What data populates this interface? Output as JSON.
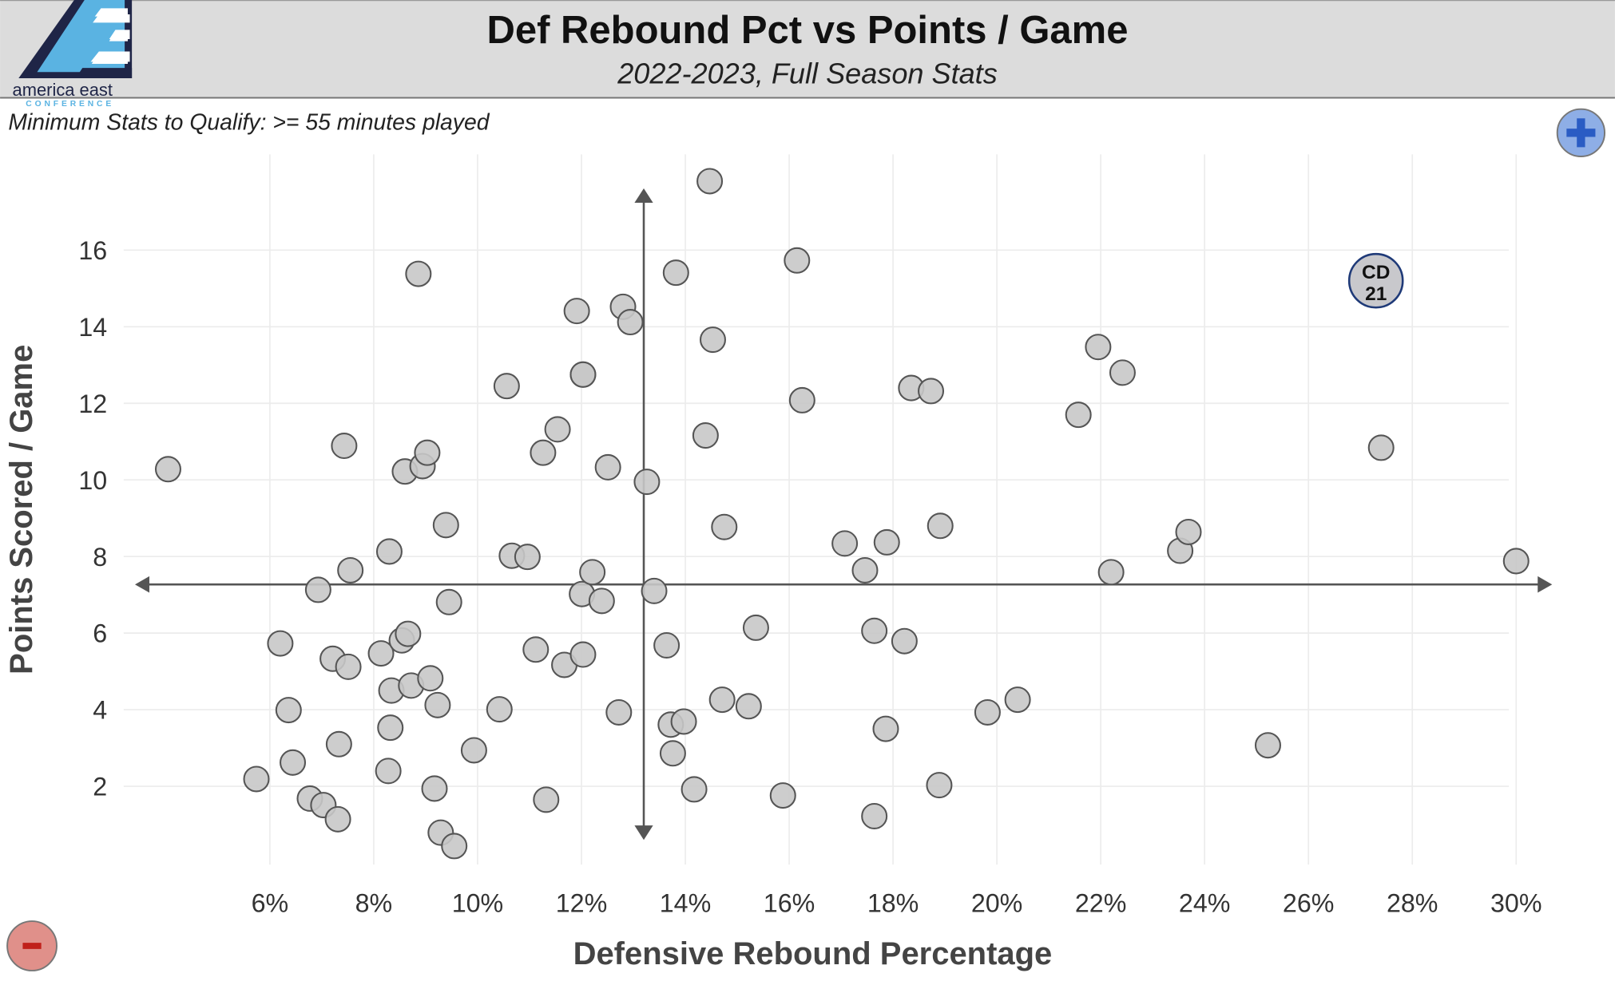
{
  "header": {
    "title": "Def Rebound Pct vs Points / Game",
    "subtitle": "2022-2023, Full Season Stats",
    "logo_text": "america east",
    "logo_subtext": "CONFERENCE"
  },
  "note": "Minimum Stats to Qualify: >= 55 minutes played",
  "controls": {
    "zoom_in_icon": "plus-icon",
    "zoom_out_icon": "minus-icon"
  },
  "colors": {
    "header_bg": "#dcdcdc",
    "point_fill": "#c8c8c8",
    "highlight_stroke": "#1f3a78",
    "plus_button": "#8eaee6",
    "minus_button": "#e0908a"
  },
  "chart_data": {
    "type": "scatter",
    "title": "Def Rebound Pct vs Points / Game",
    "xlabel": "Defensive Rebound Percentage",
    "ylabel": "Points Scored / Game",
    "xlim": [
      3.5,
      30.5
    ],
    "ylim": [
      0,
      18.5
    ],
    "x_ticks": [
      6,
      8,
      10,
      12,
      14,
      16,
      18,
      20,
      22,
      24,
      26,
      28,
      30
    ],
    "x_tick_labels": [
      "6%",
      "8%",
      "10%",
      "12%",
      "14%",
      "16%",
      "18%",
      "20%",
      "22%",
      "24%",
      "26%",
      "28%",
      "30%"
    ],
    "y_ticks": [
      2,
      4,
      6,
      8,
      10,
      12,
      14,
      16
    ],
    "y_tick_labels": [
      "2",
      "4",
      "6",
      "8",
      "10",
      "12",
      "14",
      "16"
    ],
    "grid": true,
    "average_lines": {
      "x": 13.2,
      "y": 7.27
    },
    "highlight": {
      "label_line1": "CD",
      "label_line2": "21",
      "x": 27.3,
      "y": 15.2
    },
    "points": [
      [
        4.04,
        10.28
      ],
      [
        5.74,
        2.19
      ],
      [
        6.2,
        5.73
      ],
      [
        6.36,
        3.99
      ],
      [
        6.44,
        2.62
      ],
      [
        6.77,
        1.68
      ],
      [
        7.03,
        1.51
      ],
      [
        7.31,
        1.14
      ],
      [
        6.93,
        7.13
      ],
      [
        7.21,
        5.33
      ],
      [
        7.51,
        5.12
      ],
      [
        7.33,
        3.1
      ],
      [
        7.43,
        10.89
      ],
      [
        7.55,
        7.64
      ],
      [
        8.14,
        5.47
      ],
      [
        8.3,
        8.13
      ],
      [
        8.34,
        4.5
      ],
      [
        8.32,
        3.53
      ],
      [
        8.28,
        2.4
      ],
      [
        8.54,
        5.81
      ],
      [
        8.66,
        5.98
      ],
      [
        8.72,
        4.63
      ],
      [
        8.6,
        10.22
      ],
      [
        8.86,
        15.38
      ],
      [
        8.94,
        10.36
      ],
      [
        9.03,
        10.71
      ],
      [
        9.09,
        4.82
      ],
      [
        9.23,
        4.12
      ],
      [
        9.17,
        1.94
      ],
      [
        9.29,
        0.79
      ],
      [
        9.55,
        0.44
      ],
      [
        9.39,
        8.82
      ],
      [
        9.45,
        6.81
      ],
      [
        9.93,
        2.94
      ],
      [
        10.42,
        4.01
      ],
      [
        10.56,
        12.45
      ],
      [
        10.66,
        8.02
      ],
      [
        10.96,
        7.99
      ],
      [
        11.12,
        5.57
      ],
      [
        11.26,
        10.71
      ],
      [
        11.32,
        1.65
      ],
      [
        11.54,
        11.32
      ],
      [
        11.67,
        5.17
      ],
      [
        11.91,
        14.41
      ],
      [
        12.03,
        12.75
      ],
      [
        12.03,
        12.75
      ],
      [
        12.01,
        7.02
      ],
      [
        12.03,
        5.44
      ],
      [
        12.21,
        7.59
      ],
      [
        12.39,
        6.84
      ],
      [
        12.51,
        10.33
      ],
      [
        12.72,
        3.93
      ],
      [
        12.8,
        14.52
      ],
      [
        12.94,
        14.12
      ],
      [
        13.26,
        9.95
      ],
      [
        13.4,
        7.1
      ],
      [
        13.64,
        5.68
      ],
      [
        13.72,
        3.61
      ],
      [
        13.76,
        2.86
      ],
      [
        13.82,
        15.41
      ],
      [
        13.97,
        3.69
      ],
      [
        14.17,
        1.92
      ],
      [
        14.39,
        11.16
      ],
      [
        14.47,
        17.8
      ],
      [
        14.53,
        13.66
      ],
      [
        14.71,
        4.26
      ],
      [
        14.75,
        8.77
      ],
      [
        15.22,
        4.09
      ],
      [
        15.36,
        6.14
      ],
      [
        15.88,
        1.76
      ],
      [
        16.15,
        15.73
      ],
      [
        16.25,
        12.08
      ],
      [
        17.07,
        8.34
      ],
      [
        17.46,
        7.64
      ],
      [
        17.64,
        6.06
      ],
      [
        17.64,
        1.22
      ],
      [
        17.88,
        8.37
      ],
      [
        17.86,
        3.5
      ],
      [
        18.22,
        5.79
      ],
      [
        18.35,
        12.4
      ],
      [
        18.73,
        12.32
      ],
      [
        18.89,
        2.03
      ],
      [
        18.91,
        8.8
      ],
      [
        19.82,
        3.93
      ],
      [
        20.4,
        4.26
      ],
      [
        21.57,
        11.7
      ],
      [
        21.95,
        13.47
      ],
      [
        22.2,
        7.59
      ],
      [
        22.42,
        12.8
      ],
      [
        23.53,
        8.15
      ],
      [
        23.69,
        8.64
      ],
      [
        25.22,
        3.07
      ],
      [
        27.4,
        10.84
      ],
      [
        30.0,
        7.88
      ]
    ]
  }
}
